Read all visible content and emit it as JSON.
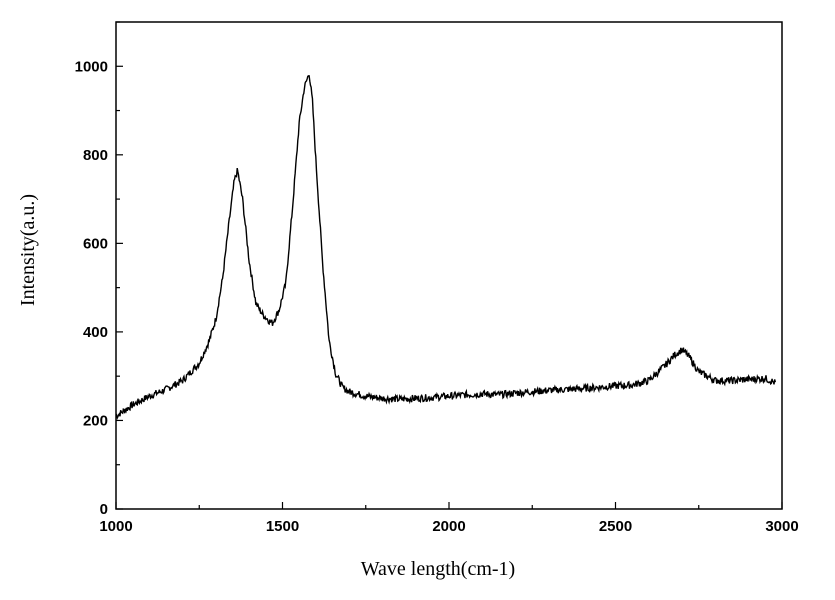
{
  "chart_data": {
    "type": "line",
    "title": "",
    "xlabel": "Wave length(cm-1)",
    "ylabel": "Intensity(a.u.)",
    "xlim": [
      1000,
      3000
    ],
    "ylim": [
      0,
      1100
    ],
    "x_ticks": [
      1000,
      1500,
      2000,
      2500,
      3000
    ],
    "y_ticks": [
      0,
      200,
      400,
      600,
      800,
      1000
    ],
    "grid": false,
    "legend": "none",
    "line_color": "#000000",
    "series": [
      {
        "x": [
          1000,
          1050,
          1100,
          1150,
          1200,
          1250,
          1280,
          1300,
          1320,
          1340,
          1355,
          1365,
          1380,
          1400,
          1420,
          1440,
          1460,
          1470,
          1490,
          1510,
          1530,
          1550,
          1565,
          1580,
          1590,
          1600,
          1620,
          1640,
          1660,
          1680,
          1700,
          1750,
          1800,
          1850,
          1900,
          1950,
          2000,
          2050,
          2100,
          2150,
          2200,
          2250,
          2300,
          2350,
          2400,
          2450,
          2500,
          2550,
          2600,
          2650,
          2680,
          2700,
          2720,
          2750,
          2800,
          2850,
          2900,
          2950,
          2980
        ],
        "values": [
          210,
          235,
          255,
          270,
          290,
          330,
          380,
          430,
          520,
          650,
          740,
          765,
          700,
          560,
          465,
          440,
          425,
          420,
          450,
          510,
          680,
          870,
          950,
          985,
          920,
          790,
          560,
          380,
          305,
          275,
          265,
          255,
          250,
          248,
          250,
          252,
          255,
          258,
          260,
          258,
          262,
          265,
          268,
          270,
          272,
          275,
          278,
          280,
          290,
          325,
          350,
          360,
          345,
          310,
          290,
          290,
          293,
          295,
          285
        ]
      }
    ]
  }
}
